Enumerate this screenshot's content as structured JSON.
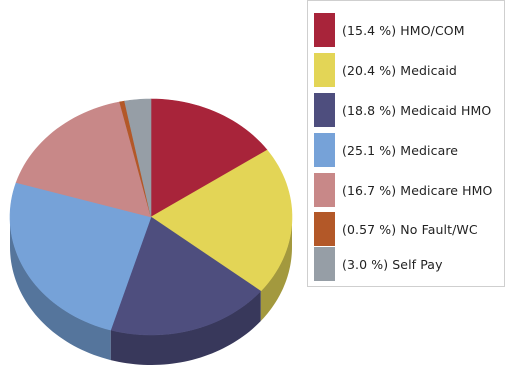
{
  "chart_data": {
    "type": "pie",
    "style": "3d",
    "legend_position": "right",
    "slices": [
      {
        "label": "(15.4 %) HMO/COM",
        "name": "HMO/COM",
        "value": 15.4,
        "color": "#a8243a"
      },
      {
        "label": "(20.4 %) Medicaid",
        "name": "Medicaid",
        "value": 20.4,
        "color": "#e3d556"
      },
      {
        "label": "(18.8 %) Medicaid HMO",
        "name": "Medicaid HMO",
        "value": 18.8,
        "color": "#4e4e7e"
      },
      {
        "label": "(25.1 %) Medicare",
        "name": "Medicare",
        "value": 25.1,
        "color": "#76a2d8"
      },
      {
        "label": "(16.7 %) Medicare HMO",
        "name": "Medicare HMO",
        "value": 16.7,
        "color": "#c88888"
      },
      {
        "label": "(0.57 %) No Fault/WC",
        "name": "No Fault/WC",
        "value": 0.57,
        "color": "#b35828"
      },
      {
        "label": "(3.0 %) Self Pay",
        "name": "Self Pay",
        "value": 3.0,
        "color": "#969ea6"
      }
    ]
  }
}
